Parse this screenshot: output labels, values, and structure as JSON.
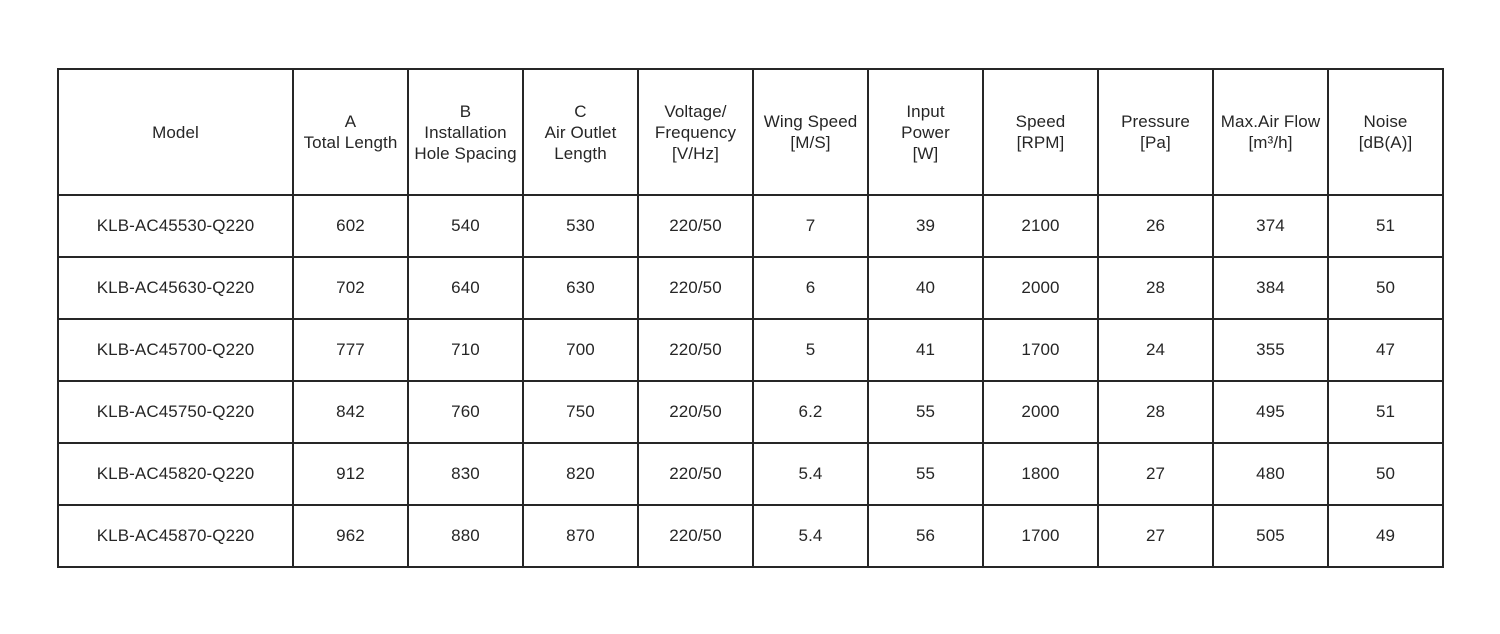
{
  "colors": {
    "background": "#ffffff",
    "border": "#262626",
    "text": "#262626"
  },
  "table": {
    "headers": [
      "Model",
      "A\nTotal Length",
      "B\nInstallation\nHole Spacing",
      "C\nAir Outlet\nLength",
      "Voltage/\nFrequency\n[V/Hz]",
      "Wing Speed\n[M/S]",
      "Input\nPower\n[W]",
      "Speed\n[RPM]",
      "Pressure\n[Pa]",
      "Max.Air Flow\n[m³/h]",
      "Noise\n[dB(A)]"
    ],
    "rows": [
      [
        "KLB-AC45530-Q220",
        "602",
        "540",
        "530",
        "220/50",
        "7",
        "39",
        "2100",
        "26",
        "374",
        "51"
      ],
      [
        "KLB-AC45630-Q220",
        "702",
        "640",
        "630",
        "220/50",
        "6",
        "40",
        "2000",
        "28",
        "384",
        "50"
      ],
      [
        "KLB-AC45700-Q220",
        "777",
        "710",
        "700",
        "220/50",
        "5",
        "41",
        "1700",
        "24",
        "355",
        "47"
      ],
      [
        "KLB-AC45750-Q220",
        "842",
        "760",
        "750",
        "220/50",
        "6.2",
        "55",
        "2000",
        "28",
        "495",
        "51"
      ],
      [
        "KLB-AC45820-Q220",
        "912",
        "830",
        "820",
        "220/50",
        "5.4",
        "55",
        "1800",
        "27",
        "480",
        "50"
      ],
      [
        "KLB-AC45870-Q220",
        "962",
        "880",
        "870",
        "220/50",
        "5.4",
        "56",
        "1700",
        "27",
        "505",
        "49"
      ]
    ]
  }
}
